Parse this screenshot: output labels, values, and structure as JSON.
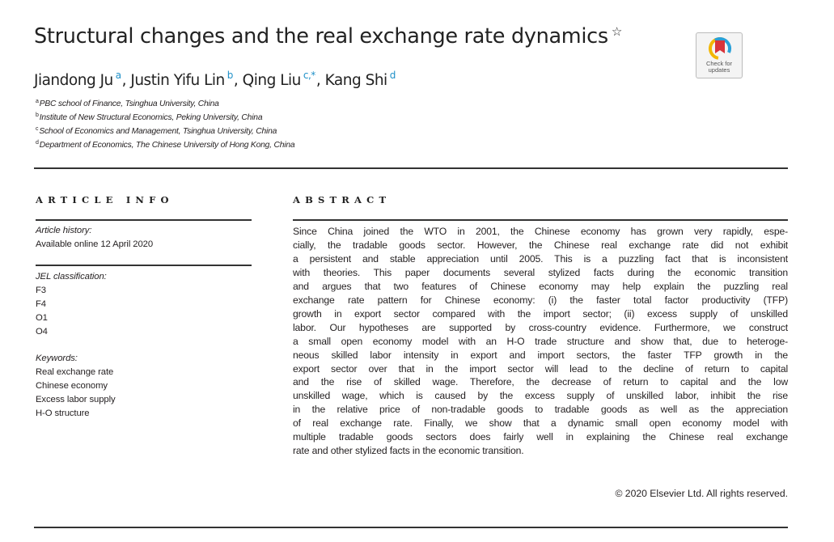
{
  "title": "Structural changes and the real exchange rate dynamics",
  "title_note_symbol": "☆",
  "authors": [
    {
      "name": "Jiandong Ju",
      "aff": "a"
    },
    {
      "name": "Justin Yifu Lin",
      "aff": "b"
    },
    {
      "name": "Qing Liu",
      "aff": "c,*"
    },
    {
      "name": "Kang Shi",
      "aff": "d"
    }
  ],
  "affiliations": [
    {
      "mark": "a",
      "text": "PBC school of Finance, Tsinghua University, China"
    },
    {
      "mark": "b",
      "text": "Institute of New Structural Economics, Peking University, China"
    },
    {
      "mark": "c",
      "text": "School of Economics and Management, Tsinghua University, China"
    },
    {
      "mark": "d",
      "text": "Department of Economics, The Chinese University of Hong Kong, China"
    }
  ],
  "badge": {
    "line1": "Check for",
    "line2": "updates",
    "colors": {
      "red": "#d9343b",
      "yellow": "#f2b705",
      "blue": "#2aa0d8"
    }
  },
  "article_info": {
    "heading": "ARTICLE INFO",
    "history_label": "Article history:",
    "history_value": "Available online 12 April 2020",
    "jel_label": "JEL classification:",
    "jel_codes": [
      "F3",
      "F4",
      "O1",
      "O4"
    ],
    "keywords_label": "Keywords:",
    "keywords": [
      "Real exchange rate",
      "Chinese economy",
      "Excess labor supply",
      "H-O structure"
    ]
  },
  "abstract": {
    "heading": "ABSTRACT",
    "lines": [
      "Since China joined the WTO in 2001, the Chinese economy has grown very rapidly, espe-",
      "cially, the tradable goods sector. However, the Chinese real exchange rate did not exhibit",
      "a persistent and stable appreciation until 2005. This is a puzzling fact that is inconsistent",
      "with theories. This paper documents several stylized facts during the economic transition",
      "and argues that two features of Chinese economy may help explain the puzzling real",
      "exchange rate pattern for Chinese economy: (i) the faster total factor productivity (TFP)",
      "growth in export sector compared with the import sector; (ii) excess supply of unskilled",
      "labor. Our hypotheses are supported by cross-country evidence. Furthermore, we construct",
      "a small open economy model with an H-O trade structure and show that, due to heteroge-",
      "neous skilled labor intensity in export and import sectors, the faster TFP growth in the",
      "export sector over that in the import sector will lead to the decline of return to capital",
      "and the rise of skilled wage. Therefore, the decrease of return to capital and the low",
      "unskilled wage, which is caused by the excess supply of unskilled labor, inhibit the rise",
      "in the relative price of non-tradable goods to tradable goods as well as the appreciation",
      "of real exchange rate. Finally, we show that a dynamic small open economy model with",
      "multiple tradable goods sectors does fairly well in explaining the Chinese real exchange",
      "rate and other stylized facts in the economic transition."
    ],
    "copyright": "© 2020 Elsevier Ltd. All rights reserved."
  }
}
